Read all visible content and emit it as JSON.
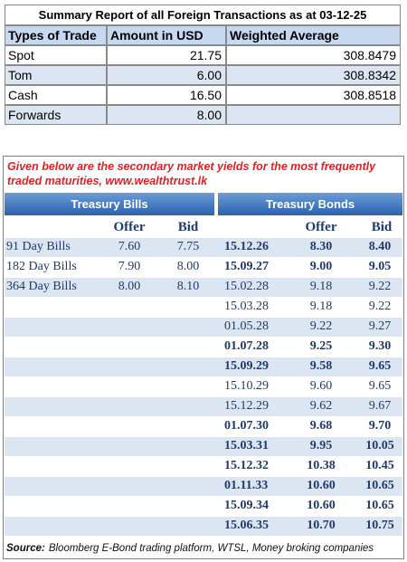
{
  "summary": {
    "title": "Summary Report of all Foreign Transactions as at 03-12-25",
    "headers": [
      "Types of Trade",
      "Amount in USD",
      "Weighted Average"
    ],
    "rows": [
      [
        "Spot",
        "21.75",
        "308.8479"
      ],
      [
        "Tom",
        "6.00",
        "308.8342"
      ],
      [
        "Cash",
        "16.50",
        "308.8518"
      ],
      [
        "Forwards",
        "8.00",
        null
      ]
    ]
  },
  "yields": {
    "note": "Given below are the secondary market yields for the most frequently traded maturities, www.wealthtrust.lk",
    "bills": {
      "title": "Treasury Bills",
      "headers": [
        "Offer",
        "Bid"
      ],
      "rows": [
        [
          "91 Day Bills",
          "7.60",
          "7.75"
        ],
        [
          "182 Day Bills",
          "7.90",
          "8.00"
        ],
        [
          "364 Day Bills",
          "8.00",
          "8.10"
        ]
      ]
    },
    "bonds": {
      "title": "Treasury Bonds",
      "headers": [
        "Offer",
        "Bid"
      ],
      "rows": [
        {
          "maturity": "15.12.26",
          "offer": "8.30",
          "bid": "8.40",
          "bold": true
        },
        {
          "maturity": "15.09.27",
          "offer": "9.00",
          "bid": "9.05",
          "bold": true
        },
        {
          "maturity": "15.02.28",
          "offer": "9.18",
          "bid": "9.22",
          "bold": false
        },
        {
          "maturity": "15.03.28",
          "offer": "9.18",
          "bid": "9.22",
          "bold": false
        },
        {
          "maturity": "01.05.28",
          "offer": "9.22",
          "bid": "9.27",
          "bold": false
        },
        {
          "maturity": "01.07.28",
          "offer": "9.25",
          "bid": "9.30",
          "bold": true
        },
        {
          "maturity": "15.09.29",
          "offer": "9.58",
          "bid": "9.65",
          "bold": true
        },
        {
          "maturity": "15.10.29",
          "offer": "9.60",
          "bid": "9.65",
          "bold": false
        },
        {
          "maturity": "15.12.29",
          "offer": "9.62",
          "bid": "9.67",
          "bold": false
        },
        {
          "maturity": "01.07.30",
          "offer": "9.68",
          "bid": "9.70",
          "bold": true
        },
        {
          "maturity": "15.03.31",
          "offer": "9.95",
          "bid": "10.05",
          "bold": true
        },
        {
          "maturity": "15.12.32",
          "offer": "10.38",
          "bid": "10.45",
          "bold": true
        },
        {
          "maturity": "01.11.33",
          "offer": "10.60",
          "bid": "10.65",
          "bold": true
        },
        {
          "maturity": "15.09.34",
          "offer": "10.60",
          "bid": "10.65",
          "bold": true
        },
        {
          "maturity": "15.06.35",
          "offer": "10.70",
          "bid": "10.75",
          "bold": true
        }
      ]
    },
    "source_label": "Source:",
    "source_text": "Bloomberg E-Bond trading platform, WTSL, Money broking companies"
  }
}
